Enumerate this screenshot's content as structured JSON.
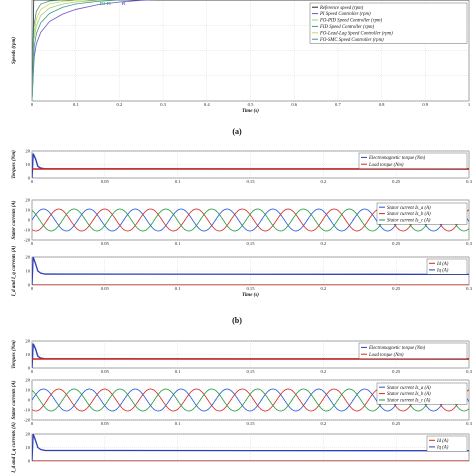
{
  "captions": {
    "a": "(a)",
    "b": "(b)"
  },
  "colors": {
    "reference": "#222222",
    "pi": "#6b56c9",
    "fo_pid": "#9bd17a",
    "fo_lead_lag": "#d7d25a",
    "fo_smc": "#3f9a8a",
    "torque_em": "#2d3fb4",
    "torque_load": "#d1261f",
    "isa": "#1f55d6",
    "isb": "#d1261f",
    "isc": "#1f9a3a",
    "id": "#d1261f",
    "iq": "#2d3fb4"
  },
  "chart_data": [
    {
      "type": "line",
      "id": "speed",
      "xlabel": "Time (s)",
      "ylabel": "Speeds (rpm)",
      "xlim": [
        0,
        1
      ],
      "xticks": [
        "0",
        "0.1",
        "0.2",
        "0.3",
        "0.4",
        "0.5",
        "0.6",
        "0.7",
        "0.8",
        "0.9",
        "1"
      ],
      "ylim": [
        0,
        1500
      ],
      "yticks": [],
      "grid": true,
      "legend": "top-right",
      "annotations": [
        {
          "text": "FO-PI",
          "x": 0.155,
          "y": 1470,
          "color": "#3f9a8a"
        },
        {
          "text": "PI",
          "x": 0.205,
          "y": 1470,
          "color": "#6b56c9"
        }
      ],
      "series": [
        {
          "name": "Reference speed (rpm)",
          "x": [
            0,
            0.004,
            0.3,
            1
          ],
          "y": [
            0,
            1500,
            1500,
            1500
          ]
        },
        {
          "name": "PI Speed Controller (rpm)",
          "x": [
            0,
            0.005,
            0.01,
            0.02,
            0.04,
            0.07,
            0.1,
            0.15,
            0.2,
            0.25,
            0.3
          ],
          "y": [
            0,
            650,
            850,
            1020,
            1180,
            1290,
            1360,
            1430,
            1470,
            1495,
            1510
          ]
        },
        {
          "name": "FO-PID Speed Controller (rpm)",
          "x": [
            0,
            0.004,
            0.01,
            0.02,
            0.04,
            0.07,
            0.1,
            0.15,
            0.2
          ],
          "y": [
            0,
            900,
            1120,
            1270,
            1380,
            1440,
            1470,
            1495,
            1505
          ]
        },
        {
          "name": "FID Speed Controller (rpm)",
          "x": [
            0,
            0.005,
            0.01,
            0.02,
            0.04,
            0.07,
            0.1,
            0.15,
            0.2,
            0.25
          ],
          "y": [
            0,
            800,
            1000,
            1160,
            1300,
            1390,
            1440,
            1480,
            1500,
            1508
          ]
        },
        {
          "name": "FO-Lead-Lag Speed Controller (rpm)",
          "x": [
            0,
            0.004,
            0.01,
            0.02,
            0.04,
            0.07,
            0.1,
            0.15
          ],
          "y": [
            0,
            980,
            1220,
            1360,
            1440,
            1480,
            1495,
            1505
          ]
        },
        {
          "name": "FO-SMC Speed Controller (rpm)",
          "x": [
            0,
            0.004,
            0.01,
            0.02,
            0.04,
            0.07,
            0.1
          ],
          "y": [
            0,
            1100,
            1330,
            1440,
            1485,
            1500,
            1505
          ]
        }
      ]
    },
    {
      "type": "line",
      "id": "torque_b",
      "xlabel": "",
      "ylabel": "Torques (Nm)",
      "xlim": [
        0,
        0.3
      ],
      "xticks": [
        "0",
        "0.05",
        "0.1",
        "0.15",
        "0.2",
        "0.25",
        "0.3"
      ],
      "ylim": [
        0,
        30
      ],
      "yticks": [
        "0",
        "10",
        "20"
      ],
      "grid": true,
      "legend": "top-right",
      "series": [
        {
          "name": "Electromagnetic torque (Nm)",
          "x": [
            0,
            0.0008,
            0.0025,
            0.004,
            0.006,
            0.009,
            0.3
          ],
          "y": [
            0,
            27,
            21,
            13,
            11,
            10.2,
            10
          ]
        },
        {
          "name": "Load torque (Nm)",
          "x": [
            0,
            0.3
          ],
          "y": [
            10,
            10
          ]
        }
      ]
    },
    {
      "type": "line",
      "id": "stator_b",
      "xlabel": "",
      "ylabel": "Stator currents (A)",
      "xlim": [
        0,
        0.3
      ],
      "xticks": [
        "0",
        "0.05",
        "0.1",
        "0.15",
        "0.2",
        "0.25",
        "0.3"
      ],
      "ylim": [
        -20,
        20
      ],
      "yticks": [
        "-20",
        "-10",
        "0",
        "10",
        "20"
      ],
      "grid": true,
      "legend": "top-right",
      "sinusoid": {
        "amplitude": 11,
        "period": 0.0315,
        "phases_deg": [
          0,
          -120,
          120
        ]
      },
      "series": [
        {
          "name": "Stator current Is_a (A)"
        },
        {
          "name": "Stator current Is_b (A)"
        },
        {
          "name": "Stator current Is_c (A)"
        }
      ]
    },
    {
      "type": "line",
      "id": "idq_b",
      "xlabel": "Time (s)",
      "ylabel": "I_d and I_q currents (A)",
      "xlim": [
        0,
        0.3
      ],
      "xticks": [
        "0",
        "0.05",
        "0.1",
        "0.15",
        "0.2",
        "0.25",
        "0.3"
      ],
      "ylim": [
        0,
        20
      ],
      "yticks": [
        "0",
        "10",
        "20"
      ],
      "grid": true,
      "legend": "top-right",
      "series": [
        {
          "name": "Id (A)",
          "x": [
            0,
            0.3
          ],
          "y": [
            0,
            0
          ]
        },
        {
          "name": "Iq (A)",
          "x": [
            0,
            0.0008,
            0.0025,
            0.004,
            0.006,
            0.009,
            0.3
          ],
          "y": [
            0,
            20,
            15,
            10,
            8.5,
            7.8,
            7.6
          ]
        }
      ]
    },
    {
      "type": "line",
      "id": "torque_c",
      "xlabel": "",
      "ylabel": "Torques (Nm)",
      "xlim": [
        0,
        0.3
      ],
      "xticks": [
        "0",
        "0.05",
        "0.1",
        "0.15",
        "0.2",
        "0.25",
        "0.3"
      ],
      "ylim": [
        0,
        30
      ],
      "yticks": [
        "0",
        "10",
        "20"
      ],
      "grid": true,
      "legend": "top-right",
      "series": [
        {
          "name": "Electromagnetic torque (Nm)",
          "x": [
            0,
            0.0008,
            0.0025,
            0.004,
            0.006,
            0.009,
            0.3
          ],
          "y": [
            0,
            27,
            21,
            13,
            11,
            10.2,
            10
          ]
        },
        {
          "name": "Load torque (Nm)",
          "x": [
            0,
            0.3
          ],
          "y": [
            10,
            10
          ]
        }
      ]
    },
    {
      "type": "line",
      "id": "stator_c",
      "xlabel": "",
      "ylabel": "Stator currents (A)",
      "xlim": [
        0,
        0.3
      ],
      "xticks": [
        "0",
        "0.05",
        "0.1",
        "0.15",
        "0.2",
        "0.25",
        "0.3"
      ],
      "ylim": [
        -20,
        20
      ],
      "yticks": [
        "-20",
        "-10",
        "0",
        "10",
        "20"
      ],
      "grid": true,
      "legend": "top-right",
      "sinusoid": {
        "amplitude": 11,
        "period": 0.0315,
        "phases_deg": [
          0,
          -120,
          120
        ]
      },
      "series": [
        {
          "name": "Stator current Is_a (A)"
        },
        {
          "name": "Stator current Is_b (A)"
        },
        {
          "name": "Stator current Is_c (A)"
        }
      ]
    },
    {
      "type": "line",
      "id": "idq_c",
      "xlabel": "",
      "ylabel": "I_d and I_q currents (A)",
      "xlim": [
        0,
        0.3
      ],
      "xticks": [],
      "ylim": [
        0,
        20
      ],
      "yticks": [
        "0",
        "10",
        "20"
      ],
      "grid": true,
      "legend": "top-right",
      "series": [
        {
          "name": "Id (A)",
          "x": [
            0,
            0.3
          ],
          "y": [
            0,
            0
          ]
        },
        {
          "name": "Iq (A)",
          "x": [
            0,
            0.0008,
            0.0025,
            0.004,
            0.006,
            0.009,
            0.3
          ],
          "y": [
            0,
            20,
            15,
            10,
            8.5,
            7.8,
            7.6
          ]
        }
      ]
    }
  ]
}
